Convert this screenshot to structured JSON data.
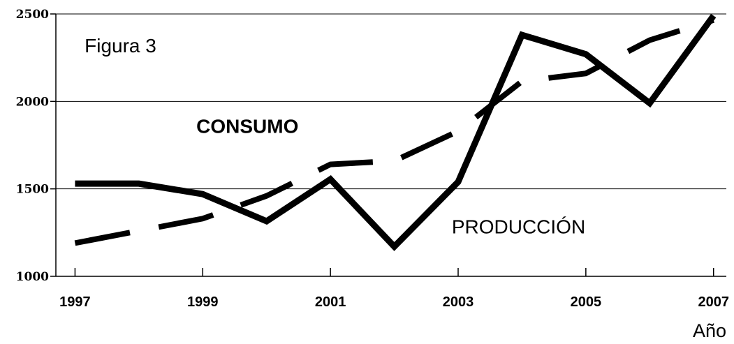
{
  "chart_data": {
    "type": "line",
    "title": "Figura 3",
    "xlabel": "Año",
    "ylabel": "",
    "x": [
      1997,
      1998,
      1999,
      2000,
      2001,
      2002,
      2003,
      2004,
      2005,
      2006,
      2007
    ],
    "x_ticks": [
      "1997",
      "1999",
      "2001",
      "2003",
      "2005",
      "2007"
    ],
    "y_ticks": [
      "1000",
      "1500",
      "2000",
      "2500"
    ],
    "xlim": [
      1996.7,
      2007.2
    ],
    "ylim": [
      1000,
      2500
    ],
    "grid": true,
    "series": [
      {
        "name": "PRODUCCIÓN",
        "style": "solid",
        "color": "#000000",
        "values": [
          1530,
          1530,
          1470,
          1315,
          1555,
          1170,
          1540,
          2380,
          2270,
          1990,
          2490
        ]
      },
      {
        "name": "CONSUMO",
        "style": "dashed",
        "color": "#000000",
        "values": [
          1190,
          1260,
          1330,
          1460,
          1640,
          1660,
          1830,
          2115,
          2160,
          2350,
          2465
        ]
      }
    ],
    "annotations": [
      {
        "text": "Figura 3",
        "x": 1997.15,
        "y": 2280,
        "weight": "normal"
      },
      {
        "text": "CONSUMO",
        "x": 1998.9,
        "y": 1820,
        "weight": "bold"
      },
      {
        "text": "PRODUCCIÓN",
        "x": 2002.9,
        "y": 1245,
        "weight": "normal"
      }
    ]
  }
}
